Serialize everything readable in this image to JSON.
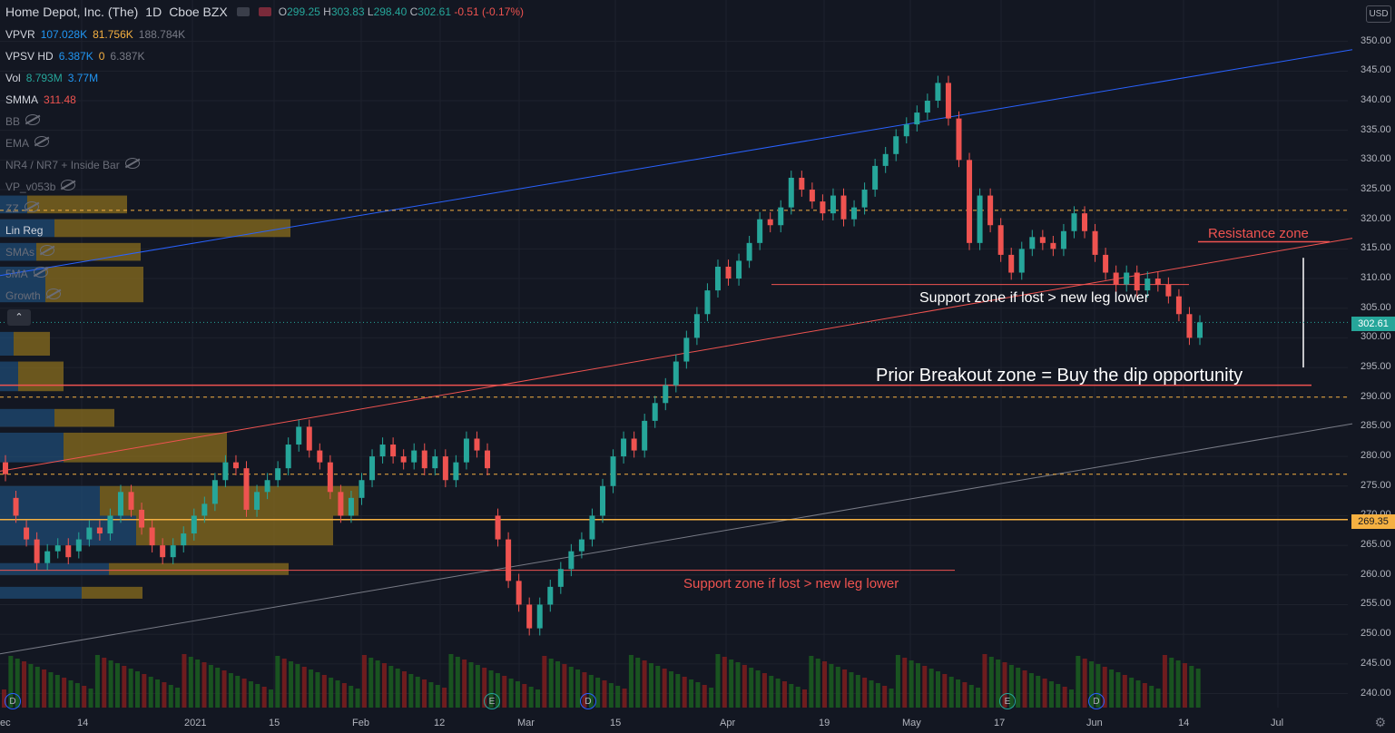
{
  "header": {
    "symbol": "Home Depot, Inc. (The)",
    "interval": "1D",
    "exchange": "Cboe BZX",
    "o_label": "O",
    "o": "299.25",
    "h_label": "H",
    "h": "303.83",
    "l_label": "L",
    "l": "298.40",
    "c_label": "C",
    "c": "302.61",
    "change": "-0.51 (-0.17%)"
  },
  "indicators": [
    {
      "name": "VPVR",
      "v1": "107.028K",
      "v2": "81.756K",
      "v3": "188.784K"
    },
    {
      "name": "VPSV HD",
      "v1": "6.387K",
      "v2": "0",
      "v3": "6.387K"
    },
    {
      "name": "Vol",
      "v1": "8.793M",
      "v2": "3.77M"
    },
    {
      "name": "SMMA",
      "v1": "311.48"
    },
    {
      "name": "BB"
    },
    {
      "name": "EMA"
    },
    {
      "name": "NR4 / NR7 + Inside Bar"
    },
    {
      "name": "VP_v053b"
    },
    {
      "name": "ZZ"
    },
    {
      "name": "Lin Reg"
    },
    {
      "name": "SMAs"
    },
    {
      "name": "5MA"
    },
    {
      "name": "Growth"
    }
  ],
  "currency": "USD",
  "annotations": {
    "resistance": "Resistance zone",
    "support_upper": "Support zone if lost > new leg lower",
    "breakout": "Prior Breakout zone = Buy the dip opportunity",
    "support_lower": "Support zone if lost > new leg lower"
  },
  "price_labels": {
    "last": "302.61",
    "level": "269.35"
  },
  "events": [
    "D",
    "E",
    "D",
    "E",
    "D"
  ],
  "colors": {
    "up": "#26a69a",
    "down": "#ef5350",
    "background": "#131722",
    "resistance_line": "#ef5350",
    "upper_channel": "#2962ff",
    "lower_channel": "#787b86",
    "horizontal_level": "#f5b041"
  },
  "chart_data": {
    "type": "candlestick",
    "title": "Home Depot, Inc. (The)",
    "y_ticks": [
      240,
      245,
      250,
      255,
      260,
      265,
      270,
      275,
      280,
      285,
      290,
      295,
      300,
      305,
      310,
      315,
      320,
      325,
      330,
      335,
      340,
      345,
      350
    ],
    "ylim": [
      237,
      353
    ],
    "x_ticks": [
      "ec",
      "14",
      "2021",
      "15",
      "Feb",
      "12",
      "Mar",
      "15",
      "Apr",
      "19",
      "May",
      "17",
      "Jun",
      "14",
      "Jul"
    ],
    "candles": [
      [
        279,
        277
      ],
      [
        273,
        270
      ],
      [
        268,
        266
      ],
      [
        266,
        262
      ],
      [
        262,
        264
      ],
      [
        264,
        265
      ],
      [
        265,
        263
      ],
      [
        264,
        266
      ],
      [
        266,
        268
      ],
      [
        268,
        267
      ],
      [
        267,
        270
      ],
      [
        270,
        274
      ],
      [
        274,
        271
      ],
      [
        271,
        268
      ],
      [
        268,
        265
      ],
      [
        265,
        263
      ],
      [
        263,
        265
      ],
      [
        265,
        267
      ],
      [
        267,
        270
      ],
      [
        270,
        272
      ],
      [
        272,
        276
      ],
      [
        276,
        279
      ],
      [
        279,
        278
      ],
      [
        278,
        271
      ],
      [
        271,
        274
      ],
      [
        274,
        276
      ],
      [
        276,
        278
      ],
      [
        278,
        282
      ],
      [
        282,
        285
      ],
      [
        285,
        281
      ],
      [
        281,
        279
      ],
      [
        279,
        274
      ],
      [
        274,
        270
      ],
      [
        270,
        273
      ],
      [
        273,
        276
      ],
      [
        276,
        280
      ],
      [
        280,
        282
      ],
      [
        282,
        280
      ],
      [
        280,
        279
      ],
      [
        279,
        281
      ],
      [
        281,
        278
      ],
      [
        278,
        280
      ],
      [
        280,
        276
      ],
      [
        276,
        279
      ],
      [
        279,
        283
      ],
      [
        283,
        281
      ],
      [
        281,
        278
      ],
      [
        270,
        266
      ],
      [
        266,
        259
      ],
      [
        259,
        255
      ],
      [
        255,
        251
      ],
      [
        251,
        255
      ],
      [
        255,
        258
      ],
      [
        258,
        261
      ],
      [
        261,
        264
      ],
      [
        264,
        266
      ],
      [
        266,
        270
      ],
      [
        270,
        275
      ],
      [
        275,
        280
      ],
      [
        280,
        283
      ],
      [
        283,
        281
      ],
      [
        281,
        286
      ],
      [
        286,
        289
      ],
      [
        289,
        292
      ],
      [
        292,
        296
      ],
      [
        296,
        300
      ],
      [
        300,
        304
      ],
      [
        304,
        308
      ],
      [
        308,
        312
      ],
      [
        312,
        310
      ],
      [
        310,
        313
      ],
      [
        313,
        316
      ],
      [
        316,
        320
      ],
      [
        320,
        319
      ],
      [
        319,
        322
      ],
      [
        322,
        327
      ],
      [
        327,
        325
      ],
      [
        325,
        323
      ],
      [
        323,
        321
      ],
      [
        321,
        324
      ],
      [
        324,
        320
      ],
      [
        320,
        322
      ],
      [
        322,
        325
      ],
      [
        325,
        329
      ],
      [
        329,
        331
      ],
      [
        331,
        334
      ],
      [
        334,
        336
      ],
      [
        336,
        338
      ],
      [
        338,
        340
      ],
      [
        340,
        343
      ],
      [
        343,
        337
      ],
      [
        337,
        330
      ],
      [
        330,
        316
      ],
      [
        316,
        324
      ],
      [
        324,
        319
      ],
      [
        319,
        314
      ],
      [
        314,
        311
      ],
      [
        311,
        315
      ],
      [
        315,
        317
      ],
      [
        317,
        316
      ],
      [
        316,
        315
      ],
      [
        315,
        318
      ],
      [
        318,
        321
      ],
      [
        321,
        318
      ],
      [
        318,
        314
      ],
      [
        314,
        311
      ],
      [
        311,
        309
      ],
      [
        309,
        311
      ],
      [
        311,
        308
      ],
      [
        308,
        310
      ],
      [
        310,
        309
      ],
      [
        309,
        307
      ],
      [
        307,
        304
      ],
      [
        304,
        300
      ],
      [
        300,
        302.61
      ]
    ],
    "levels": [
      {
        "type": "resistance_dashed",
        "value": 321.5
      },
      {
        "type": "support_solid",
        "value": 309
      },
      {
        "type": "breakout_solid",
        "value": 292
      },
      {
        "type": "dashed_orange",
        "value": 290
      },
      {
        "type": "dashed_orange",
        "value": 277
      },
      {
        "type": "solid_orange",
        "value": 269.35
      },
      {
        "type": "support_solid_lower",
        "value": 260.8
      }
    ],
    "last_price": 302.61
  }
}
